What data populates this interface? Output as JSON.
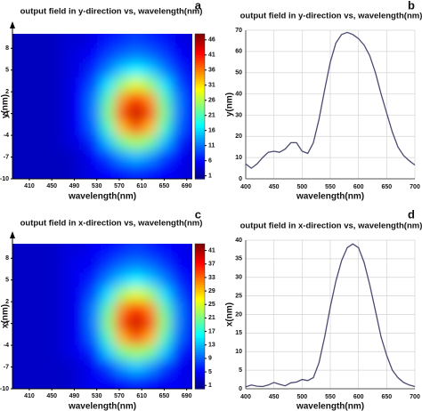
{
  "chart_data": [
    {
      "type": "heatmap",
      "panel_label": "a",
      "title": "output field in y-direction vs, wavelength(nm)",
      "xlabel": "wavelength(nm)",
      "ylabel": "y(nm)",
      "x": [
        400,
        425,
        450,
        475,
        500,
        525,
        550,
        575,
        600,
        625,
        650,
        675,
        700
      ],
      "y": [
        9,
        7,
        5,
        3,
        1,
        -1,
        -3,
        -5,
        -7,
        -9
      ],
      "z": [
        [
          3,
          3,
          3,
          4,
          4,
          5,
          7,
          8,
          9,
          8,
          7,
          5,
          4
        ],
        [
          3,
          3,
          3,
          4,
          5,
          6,
          9,
          11,
          12,
          11,
          9,
          6,
          5
        ],
        [
          3,
          3,
          3,
          4,
          5,
          8,
          12,
          16,
          18,
          16,
          12,
          8,
          5
        ],
        [
          3,
          3,
          3,
          4,
          6,
          10,
          17,
          25,
          29,
          25,
          17,
          10,
          6
        ],
        [
          3,
          3,
          3,
          4,
          6,
          12,
          22,
          35,
          41,
          35,
          22,
          12,
          6
        ],
        [
          3,
          3,
          3,
          4,
          6,
          12,
          24,
          39,
          45,
          39,
          24,
          12,
          6
        ],
        [
          3,
          3,
          3,
          4,
          6,
          11,
          21,
          33,
          39,
          33,
          21,
          11,
          6
        ],
        [
          3,
          3,
          3,
          4,
          5,
          8,
          15,
          23,
          26,
          23,
          15,
          8,
          5
        ],
        [
          3,
          3,
          3,
          3,
          4,
          6,
          9,
          13,
          15,
          13,
          9,
          6,
          4
        ],
        [
          3,
          3,
          3,
          3,
          4,
          5,
          6,
          7,
          8,
          7,
          6,
          5,
          4
        ]
      ],
      "xlim": [
        380,
        700
      ],
      "ylim": [
        -10,
        10
      ],
      "xticks": [
        410,
        450,
        490,
        530,
        570,
        610,
        650,
        690
      ],
      "yticks": [
        8,
        5,
        2,
        -1,
        -4,
        -7,
        -10
      ],
      "clim": [
        0,
        48
      ],
      "colorbar_ticks": [
        1,
        6,
        11,
        16,
        21,
        26,
        31,
        36,
        41,
        46
      ]
    },
    {
      "type": "line",
      "panel_label": "b",
      "title": "output field in y-direction vs, wavelength(nm)",
      "xlabel": "wavelength(nm)",
      "ylabel": "y(nm)",
      "x": [
        400,
        410,
        420,
        430,
        440,
        450,
        460,
        470,
        480,
        490,
        500,
        510,
        520,
        530,
        540,
        550,
        560,
        570,
        580,
        590,
        600,
        610,
        620,
        630,
        640,
        650,
        660,
        670,
        680,
        690,
        700
      ],
      "values": [
        7,
        5,
        7,
        10,
        12.5,
        13,
        12.5,
        14,
        17,
        17,
        13,
        12,
        17,
        28,
        42,
        55,
        64,
        68,
        69,
        68,
        66,
        63,
        58,
        50,
        40,
        31,
        22,
        15,
        11,
        8.5,
        6.5
      ],
      "color": "#4b4b72",
      "xlim": [
        400,
        700
      ],
      "ylim": [
        0,
        70
      ],
      "xticks": [
        400,
        450,
        500,
        550,
        600,
        650,
        700
      ],
      "yticks": [
        0,
        10,
        20,
        30,
        40,
        50,
        60,
        70
      ],
      "grid": true
    },
    {
      "type": "heatmap",
      "panel_label": "c",
      "title": "output field in x-direction vs, wavelength(nm)",
      "xlabel": "wavelength(nm)",
      "ylabel": "x(nm)",
      "x": [
        400,
        425,
        450,
        475,
        500,
        525,
        550,
        575,
        600,
        625,
        650,
        675,
        700
      ],
      "y": [
        9,
        7,
        5,
        3,
        1,
        -1,
        -3,
        -5,
        -7,
        -9
      ],
      "z": [
        [
          3,
          3,
          3,
          4,
          4,
          5,
          6,
          7,
          8,
          7,
          6,
          5,
          4
        ],
        [
          3,
          3,
          3,
          4,
          5,
          5,
          8,
          10,
          11,
          10,
          8,
          5,
          5
        ],
        [
          3,
          3,
          3,
          4,
          5,
          7,
          11,
          14,
          16,
          14,
          11,
          7,
          5
        ],
        [
          3,
          3,
          3,
          4,
          5,
          9,
          15,
          23,
          26,
          23,
          15,
          9,
          5
        ],
        [
          3,
          3,
          3,
          4,
          5,
          11,
          20,
          32,
          37,
          32,
          20,
          11,
          5
        ],
        [
          3,
          3,
          3,
          4,
          5,
          11,
          22,
          35,
          40,
          35,
          22,
          11,
          5
        ],
        [
          3,
          3,
          3,
          4,
          5,
          10,
          19,
          30,
          35,
          30,
          19,
          10,
          5
        ],
        [
          3,
          3,
          3,
          4,
          5,
          7,
          14,
          21,
          23,
          21,
          14,
          7,
          5
        ],
        [
          3,
          3,
          3,
          3,
          4,
          5,
          8,
          12,
          14,
          12,
          8,
          5,
          4
        ],
        [
          3,
          3,
          3,
          3,
          4,
          5,
          5,
          6,
          7,
          6,
          5,
          5,
          4
        ]
      ],
      "xlim": [
        380,
        700
      ],
      "ylim": [
        -10,
        10
      ],
      "xticks": [
        410,
        450,
        490,
        530,
        570,
        610,
        650,
        690
      ],
      "yticks": [
        8,
        5,
        2,
        -1,
        -4,
        -7,
        -10
      ],
      "clim": [
        0,
        43
      ],
      "colorbar_ticks": [
        1,
        5,
        9,
        13,
        17,
        21,
        25,
        29,
        33,
        37,
        41
      ]
    },
    {
      "type": "line",
      "panel_label": "d",
      "title": "output field in x-direction vs, wavelength(nm)",
      "xlabel": "wavelength(nm)",
      "ylabel": "x(nm)",
      "x": [
        400,
        410,
        420,
        430,
        440,
        450,
        460,
        470,
        480,
        490,
        500,
        510,
        520,
        530,
        540,
        550,
        560,
        570,
        580,
        590,
        600,
        610,
        620,
        630,
        640,
        650,
        660,
        670,
        680,
        690,
        700
      ],
      "values": [
        0.5,
        1,
        0.7,
        0.6,
        1,
        1.7,
        1.2,
        0.8,
        1.6,
        1.8,
        2.5,
        2.2,
        3,
        7,
        14,
        22,
        29,
        34.5,
        38,
        39,
        38,
        34,
        28,
        21,
        14,
        9,
        5,
        3,
        1.7,
        1,
        0.6
      ],
      "color": "#4b4b72",
      "xlim": [
        400,
        700
      ],
      "ylim": [
        0,
        40
      ],
      "xticks": [
        400,
        450,
        500,
        550,
        600,
        650,
        700
      ],
      "yticks": [
        0,
        5,
        10,
        15,
        20,
        25,
        30,
        35,
        40
      ],
      "grid": true
    }
  ]
}
